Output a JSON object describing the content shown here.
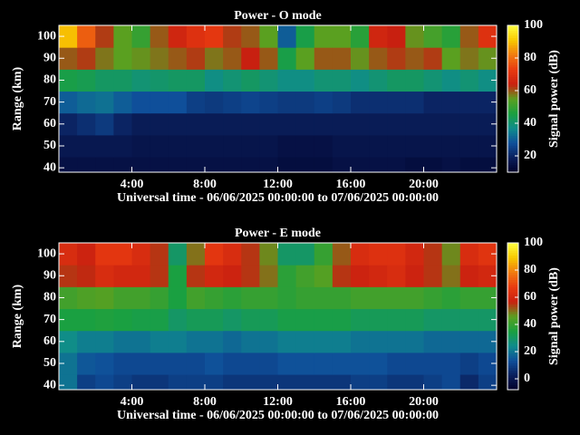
{
  "chart_data": [
    {
      "type": "heatmap",
      "title": "Power - O mode",
      "xlabel": "Universal time - 06/06/2025 00:00:00 to 07/06/2025 00:00:00",
      "ylabel": "Range (km)",
      "colorbar_label": "Signal power (dB)",
      "xbins": [
        0,
        1,
        2,
        3,
        4,
        5,
        6,
        7,
        8,
        9,
        10,
        11,
        12,
        13,
        14,
        15,
        16,
        17,
        18,
        19,
        20,
        21,
        22,
        23,
        24
      ],
      "ybins": [
        38,
        45,
        55,
        65,
        75,
        85,
        95,
        105
      ],
      "xlim": [
        0,
        24
      ],
      "ylim": [
        38,
        105
      ],
      "xticks": [
        {
          "value": 4,
          "label": "4:00"
        },
        {
          "value": 8,
          "label": "8:00"
        },
        {
          "value": 12,
          "label": "12:00"
        },
        {
          "value": 16,
          "label": "16:00"
        },
        {
          "value": 20,
          "label": "20:00"
        }
      ],
      "yticks": [
        40,
        50,
        60,
        70,
        80,
        90,
        100
      ],
      "clim": [
        10,
        100
      ],
      "cticks": [
        20,
        40,
        60,
        80,
        100
      ],
      "colorscale": [
        "#000028",
        "#0a1f5c",
        "#0f4f9a",
        "#0f8c8c",
        "#1aa040",
        "#5aa020",
        "#c82010",
        "#e83a10",
        "#f07a10",
        "#f8c800",
        "#ffff40"
      ],
      "z": [
        [
          15,
          15,
          15,
          15,
          15,
          15,
          15,
          15,
          15,
          15,
          15,
          15,
          14,
          14,
          14,
          15,
          15,
          15,
          15,
          14,
          14,
          15,
          14,
          14
        ],
        [
          17,
          17,
          17,
          17,
          16,
          16,
          16,
          16,
          16,
          16,
          16,
          16,
          15,
          15,
          15,
          16,
          16,
          16,
          16,
          16,
          16,
          16,
          16,
          16
        ],
        [
          20,
          22,
          24,
          20,
          18,
          18,
          18,
          18,
          18,
          18,
          18,
          18,
          18,
          18,
          18,
          18,
          18,
          18,
          18,
          18,
          18,
          18,
          18,
          18
        ],
        [
          30,
          32,
          33,
          30,
          28,
          28,
          28,
          25,
          24,
          25,
          26,
          25,
          24,
          24,
          25,
          24,
          22,
          22,
          22,
          22,
          20,
          20,
          20,
          20
        ],
        [
          45,
          44,
          42,
          42,
          40,
          41,
          42,
          42,
          38,
          40,
          42,
          40,
          38,
          38,
          40,
          40,
          38,
          40,
          42,
          42,
          40,
          38,
          40,
          38
        ],
        [
          60,
          62,
          58,
          55,
          56,
          58,
          60,
          62,
          58,
          60,
          64,
          60,
          45,
          55,
          60,
          60,
          56,
          60,
          62,
          60,
          62,
          55,
          58,
          56
        ],
        [
          90,
          78,
          62,
          55,
          50,
          60,
          66,
          70,
          72,
          62,
          60,
          55,
          30,
          45,
          55,
          55,
          48,
          66,
          64,
          56,
          52,
          48,
          60,
          70
        ]
      ]
    },
    {
      "type": "heatmap",
      "title": "Power - E mode",
      "xlabel": "Universal time - 06/06/2025 00:00:00 to 07/06/2025 00:00:00",
      "ylabel": "Range (km)",
      "colorbar_label": "Signal power (dB)",
      "xbins": [
        0,
        1,
        2,
        3,
        4,
        5,
        6,
        7,
        8,
        9,
        10,
        11,
        12,
        13,
        14,
        15,
        16,
        17,
        18,
        19,
        20,
        21,
        22,
        23,
        24
      ],
      "ybins": [
        38,
        45,
        55,
        65,
        75,
        85,
        95,
        105
      ],
      "xlim": [
        0,
        24
      ],
      "ylim": [
        38,
        105
      ],
      "xticks": [
        {
          "value": 4,
          "label": "4:00"
        },
        {
          "value": 8,
          "label": "8:00"
        },
        {
          "value": 12,
          "label": "12:00"
        },
        {
          "value": 16,
          "label": "16:00"
        },
        {
          "value": 20,
          "label": "20:00"
        }
      ],
      "yticks": [
        40,
        50,
        60,
        70,
        80,
        90,
        100
      ],
      "clim": [
        -8,
        100
      ],
      "cticks": [
        0,
        20,
        40,
        60,
        80,
        100
      ],
      "colorscale": [
        "#000028",
        "#0a1f5c",
        "#0f4f9a",
        "#0f8c8c",
        "#1aa040",
        "#5aa020",
        "#c82010",
        "#e83a10",
        "#f07a10",
        "#f8c800",
        "#ffff40"
      ],
      "z": [
        [
          20,
          10,
          12,
          10,
          8,
          8,
          10,
          10,
          10,
          8,
          8,
          8,
          8,
          8,
          8,
          8,
          10,
          10,
          8,
          8,
          10,
          12,
          5,
          10
        ],
        [
          20,
          15,
          14,
          12,
          12,
          12,
          12,
          12,
          14,
          12,
          12,
          12,
          14,
          14,
          14,
          14,
          14,
          14,
          12,
          12,
          12,
          12,
          10,
          12
        ],
        [
          25,
          22,
          22,
          20,
          20,
          22,
          22,
          20,
          20,
          18,
          20,
          20,
          22,
          22,
          22,
          22,
          20,
          20,
          20,
          20,
          18,
          18,
          18,
          18
        ],
        [
          35,
          35,
          36,
          35,
          34,
          34,
          30,
          32,
          32,
          30,
          32,
          32,
          34,
          34,
          34,
          34,
          32,
          32,
          32,
          32,
          30,
          30,
          30,
          30
        ],
        [
          42,
          44,
          45,
          42,
          42,
          40,
          35,
          42,
          40,
          38,
          40,
          40,
          38,
          40,
          40,
          40,
          42,
          42,
          42,
          42,
          40,
          38,
          40,
          40
        ],
        [
          55,
          56,
          62,
          60,
          60,
          55,
          35,
          55,
          60,
          58,
          55,
          50,
          38,
          42,
          45,
          55,
          58,
          60,
          62,
          58,
          55,
          50,
          58,
          60
        ],
        [
          62,
          58,
          66,
          66,
          62,
          55,
          30,
          50,
          66,
          62,
          55,
          48,
          30,
          30,
          40,
          52,
          62,
          64,
          64,
          60,
          55,
          48,
          62,
          65
        ]
      ]
    }
  ]
}
